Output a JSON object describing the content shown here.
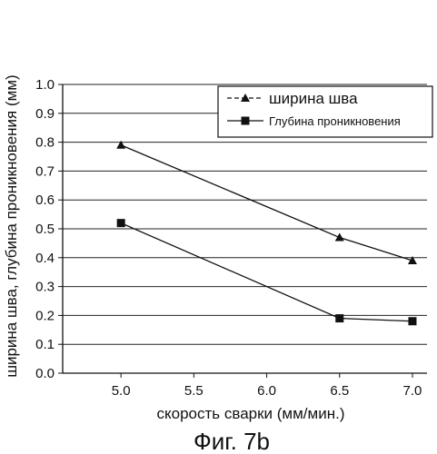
{
  "caption": "Фиг. 7b",
  "chart_data": {
    "type": "line",
    "title": "",
    "xlabel": "скорость сварки (мм/мин.)",
    "ylabel": "ширина шва, глубина проникновения (мм)",
    "xlim": [
      4.6,
      7.1
    ],
    "ylim": [
      0.0,
      1.0
    ],
    "x_ticks": [
      "5.0",
      "5.5",
      "6.0",
      "6.5",
      "7.0"
    ],
    "y_ticks": [
      "0.0",
      "0.1",
      "0.2",
      "0.3",
      "0.4",
      "0.5",
      "0.6",
      "0.7",
      "0.8",
      "0.9",
      "1.0"
    ],
    "grid": "horizontal",
    "legend_position": "top-right",
    "series": [
      {
        "name": "ширина шва",
        "marker": "triangle",
        "color": "#111111",
        "x": [
          5.0,
          6.5,
          7.0
        ],
        "y": [
          0.79,
          0.47,
          0.39
        ]
      },
      {
        "name": "Глубина проникновения",
        "marker": "square",
        "color": "#111111",
        "x": [
          5.0,
          6.5,
          7.0
        ],
        "y": [
          0.52,
          0.19,
          0.18
        ]
      }
    ]
  }
}
